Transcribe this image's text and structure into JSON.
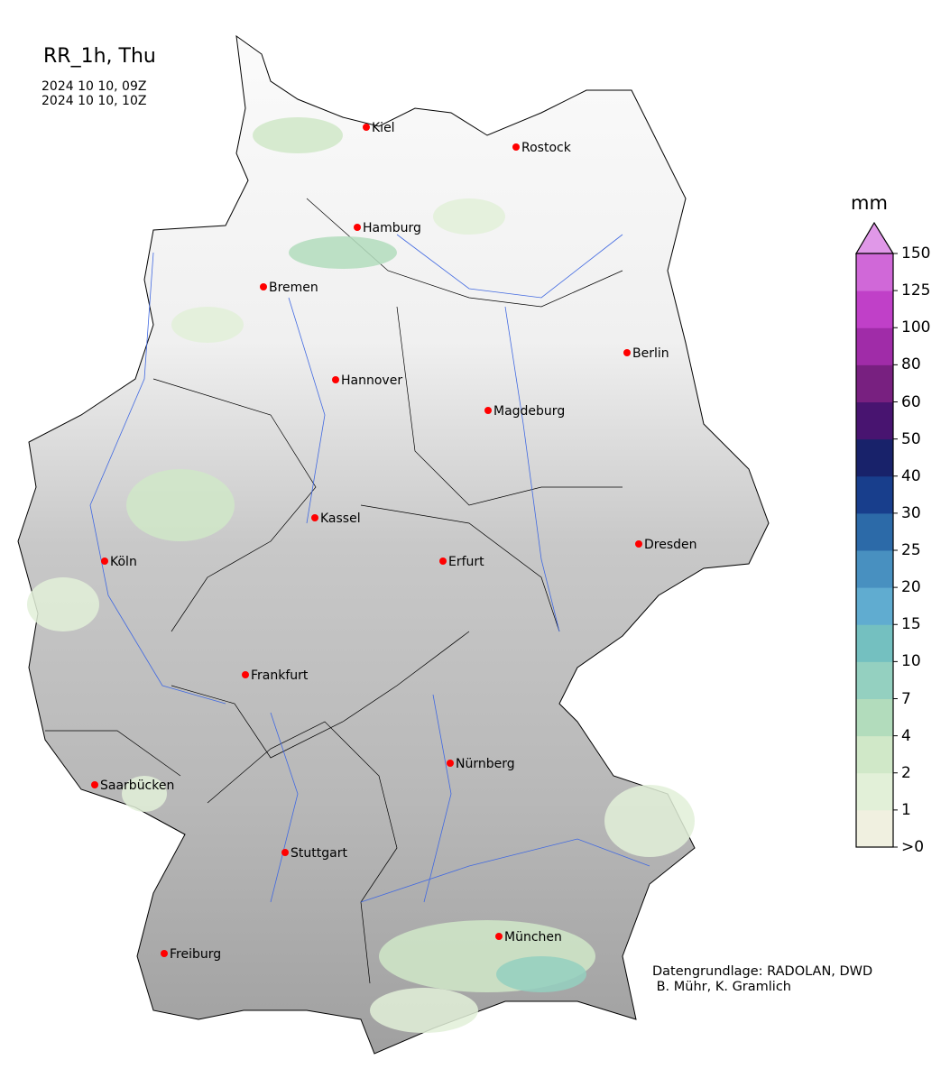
{
  "title": "RR_1h, Thu",
  "period": [
    "2024 10 10, 09Z",
    "2024 10 10, 10Z"
  ],
  "colorbar": {
    "unit": "mm",
    "ticks": [
      ">0",
      "1",
      "2",
      "4",
      "7",
      "10",
      "15",
      "20",
      "25",
      "30",
      "40",
      "50",
      "60",
      "80",
      "100",
      "125",
      "150"
    ],
    "colors": [
      "#f0f0e0",
      "#e2f0d8",
      "#d0e8c8",
      "#b2dcbc",
      "#94d0c0",
      "#74c0c0",
      "#60acd0",
      "#4890c0",
      "#2c6aa8",
      "#183e8c",
      "#18226a",
      "#481470",
      "#782080",
      "#a02ca8",
      "#c040c8",
      "#d068d8"
    ],
    "extend_color": "#e098e8"
  },
  "cities": [
    "Kiel",
    "Rostock",
    "Hamburg",
    "Bremen",
    "Berlin",
    "Hannover",
    "Magdeburg",
    "Kassel",
    "Dresden",
    "Köln",
    "Erfurt",
    "Frankfurt",
    "Nürnberg",
    "Saarbücken",
    "Stuttgart",
    "München",
    "Freiburg"
  ],
  "credit": "Datengrundlage: RADOLAN, DWD\n B. Mühr, K. Gramlich",
  "colors": {
    "city_marker": "#ff0000",
    "rivers": "#4169e1",
    "borders": "#000000"
  }
}
